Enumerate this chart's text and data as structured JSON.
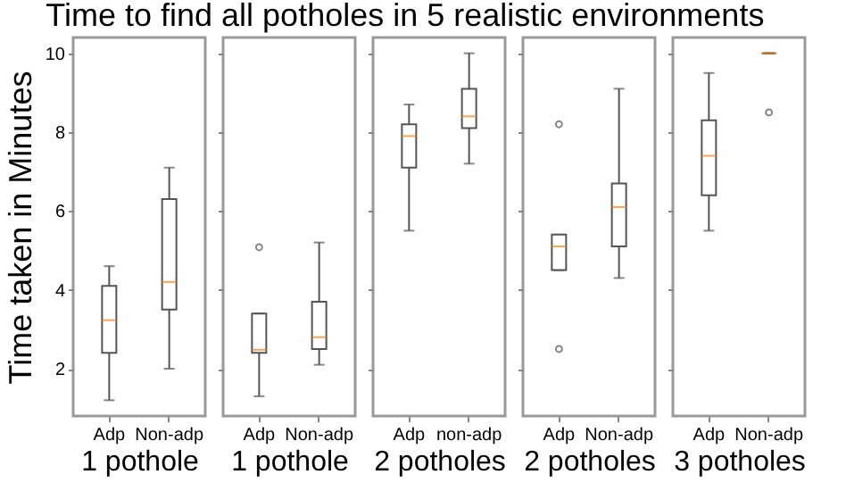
{
  "chart_data": [
    {
      "type": "box",
      "title": "Time to find all potholes in 5 realistic environments",
      "xlabel": "1 pothole",
      "ylabel": "Time taken in Minutes",
      "categories": [
        "Adp",
        "Non-adp"
      ],
      "ylim": [
        0.8,
        10.4
      ],
      "yticks": [
        2,
        4,
        6,
        8,
        10
      ],
      "boxes": [
        {
          "low": 1.2,
          "q1": 2.4,
          "median": 3.23,
          "q3": 4.1,
          "high": 4.6
        },
        {
          "low": 2.0,
          "q1": 3.5,
          "median": 4.2,
          "q3": 6.3,
          "high": 7.1
        }
      ]
    },
    {
      "type": "box",
      "xlabel": "1 pothole",
      "categories": [
        "Adp",
        "Non-adp"
      ],
      "ylim": [
        0.8,
        10.4
      ],
      "yticks": [
        2,
        4,
        6,
        8,
        10
      ],
      "tick_labels": "x",
      "boxes": [
        {
          "low": 1.3,
          "q1": 2.4,
          "median": 2.48,
          "q3": 3.4,
          "high": 3.4,
          "outliers": [
            5.08
          ]
        },
        {
          "low": 2.1,
          "q1": 2.5,
          "median": 2.8,
          "q3": 3.7,
          "high": 5.2
        }
      ]
    },
    {
      "type": "box",
      "xlabel": "2 potholes",
      "categories": [
        "Adp",
        "non-adp"
      ],
      "ylim": [
        0.8,
        10.4
      ],
      "yticks": [
        2,
        4,
        6,
        8,
        10
      ],
      "tick_labels": "x",
      "boxes": [
        {
          "low": 5.5,
          "q1": 7.1,
          "median": 7.9,
          "q3": 8.2,
          "high": 8.7
        },
        {
          "low": 7.2,
          "q1": 8.1,
          "median": 8.4,
          "q3": 9.1,
          "high": 10.0
        }
      ]
    },
    {
      "type": "box",
      "xlabel": "2 potholes",
      "categories": [
        "Adp",
        "Non-adp"
      ],
      "ylim": [
        0.8,
        10.4
      ],
      "yticks": [
        2,
        4,
        6,
        8,
        10
      ],
      "tick_labels": "x",
      "boxes": [
        {
          "low": 4.5,
          "q1": 4.5,
          "median": 5.1,
          "q3": 5.4,
          "high": 5.4,
          "outliers": [
            8.2,
            2.5
          ]
        },
        {
          "low": 4.3,
          "q1": 5.1,
          "median": 6.1,
          "q3": 6.7,
          "high": 9.1
        }
      ]
    },
    {
      "type": "box",
      "xlabel": "3 potholes",
      "categories": [
        "Adp",
        "Non-adp"
      ],
      "ylim": [
        0.8,
        10.4
      ],
      "yticks": [
        2,
        4,
        6,
        8,
        10
      ],
      "tick_labels": "x",
      "boxes": [
        {
          "low": 5.5,
          "q1": 6.4,
          "median": 7.4,
          "q3": 8.3,
          "high": 9.5
        },
        {
          "low": 10.0,
          "q1": 10.0,
          "median": 10.0,
          "q3": 10.0,
          "high": 10.0,
          "outliers": [
            8.5
          ]
        }
      ]
    }
  ]
}
